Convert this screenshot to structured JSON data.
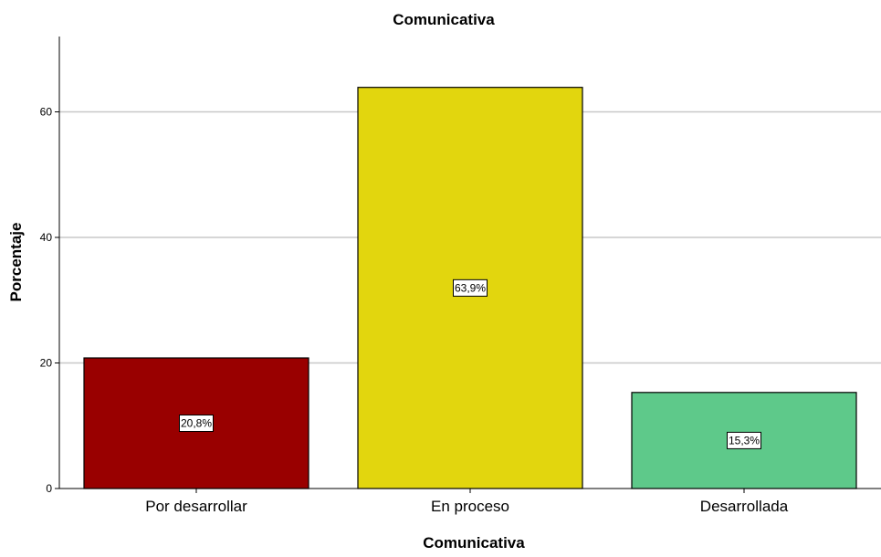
{
  "chart_data": {
    "type": "bar",
    "title": "Comunicativa",
    "xlabel": "Comunicativa",
    "ylabel": "Porcentaje",
    "categories": [
      "Por desarrollar",
      "En proceso",
      "Desarrollada"
    ],
    "values": [
      20.8,
      63.9,
      15.3
    ],
    "data_labels": [
      "20,8%",
      "63,9%",
      "15,3%"
    ],
    "bar_colors": [
      "#990000",
      "#e2d60e",
      "#5ec98a"
    ],
    "ylim": [
      0,
      72
    ],
    "yticks": [
      0,
      20,
      40,
      60
    ],
    "grid": true,
    "grid_color": "#c8c8c8"
  }
}
